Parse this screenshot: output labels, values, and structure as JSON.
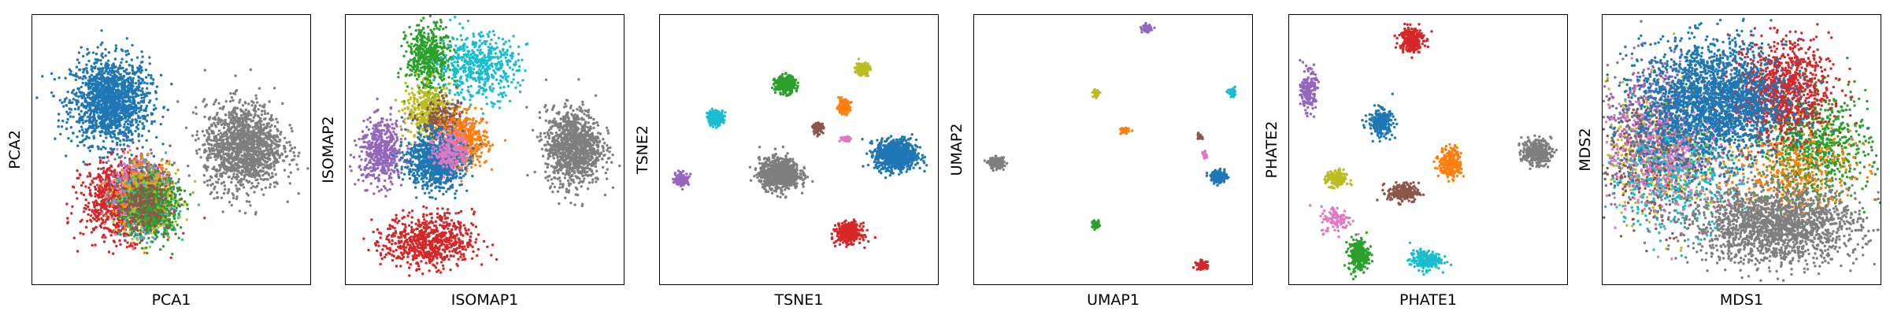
{
  "chart_data": [
    {
      "type": "scatter",
      "title": "",
      "xlabel": "PCA1",
      "ylabel": "PCA2",
      "xlim": [
        0,
        100
      ],
      "ylim": [
        0,
        100
      ],
      "grid": false,
      "ticks": false,
      "series": [
        {
          "color": "#1f77b4",
          "clusters": [
            {
              "cx": 28,
              "cy": 68,
              "sx": 7,
              "sy": 8,
              "n": 1500
            }
          ]
        },
        {
          "color": "#7f7f7f",
          "clusters": [
            {
              "cx": 76,
              "cy": 51,
              "sx": 7,
              "sy": 8,
              "n": 1400
            }
          ]
        },
        {
          "color": "#d62728",
          "clusters": [
            {
              "cx": 32,
              "cy": 31,
              "sx": 7,
              "sy": 7,
              "n": 900
            }
          ]
        },
        {
          "color": "#9467bd",
          "clusters": [
            {
              "cx": 39,
              "cy": 37,
              "sx": 5,
              "sy": 6,
              "n": 300
            }
          ]
        },
        {
          "color": "#e377c2",
          "clusters": [
            {
              "cx": 38,
              "cy": 33,
              "sx": 5,
              "sy": 6,
              "n": 300
            }
          ]
        },
        {
          "color": "#ff7f0e",
          "clusters": [
            {
              "cx": 40,
              "cy": 32,
              "sx": 5,
              "sy": 6,
              "n": 350
            }
          ]
        },
        {
          "color": "#17becf",
          "clusters": [
            {
              "cx": 42,
              "cy": 29,
              "sx": 5,
              "sy": 6,
              "n": 350
            }
          ]
        },
        {
          "color": "#bcbd22",
          "clusters": [
            {
              "cx": 42,
              "cy": 31,
              "sx": 5,
              "sy": 6,
              "n": 400
            }
          ]
        },
        {
          "color": "#2ca02c",
          "clusters": [
            {
              "cx": 43,
              "cy": 28,
              "sx": 5,
              "sy": 6,
              "n": 400
            }
          ]
        },
        {
          "color": "#8c564b",
          "clusters": [
            {
              "cx": 40,
              "cy": 30,
              "sx": 5,
              "sy": 5,
              "n": 250
            }
          ]
        }
      ]
    },
    {
      "type": "scatter",
      "title": "",
      "xlabel": "ISOMAP1",
      "ylabel": "ISOMAP2",
      "xlim": [
        0,
        100
      ],
      "ylim": [
        0,
        100
      ],
      "grid": false,
      "ticks": false,
      "series": [
        {
          "color": "#d62728",
          "clusters": [
            {
              "cx": 30,
              "cy": 16,
              "sx": 8,
              "sy": 5,
              "n": 700
            }
          ]
        },
        {
          "color": "#7f7f7f",
          "clusters": [
            {
              "cx": 82,
              "cy": 51,
              "sx": 5,
              "sy": 7,
              "n": 1100
            }
          ]
        },
        {
          "color": "#9467bd",
          "clusters": [
            {
              "cx": 13,
              "cy": 49,
              "sx": 4,
              "sy": 6,
              "n": 500
            }
          ]
        },
        {
          "color": "#2ca02c",
          "clusters": [
            {
              "cx": 30,
              "cy": 84,
              "sx": 4,
              "sy": 6,
              "n": 500
            }
          ]
        },
        {
          "color": "#17becf",
          "clusters": [
            {
              "cx": 48,
              "cy": 81,
              "sx": 7,
              "sy": 6,
              "n": 500
            }
          ]
        },
        {
          "color": "#bcbd22",
          "clusters": [
            {
              "cx": 30,
              "cy": 64,
              "sx": 4,
              "sy": 5,
              "n": 400
            }
          ]
        },
        {
          "color": "#8c564b",
          "clusters": [
            {
              "cx": 35,
              "cy": 60,
              "sx": 4,
              "sy": 4,
              "n": 250
            }
          ]
        },
        {
          "color": "#ff7f0e",
          "clusters": [
            {
              "cx": 43,
              "cy": 53,
              "sx": 4,
              "sy": 5,
              "n": 450
            }
          ]
        },
        {
          "color": "#1f77b4",
          "clusters": [
            {
              "cx": 32,
              "cy": 46,
              "sx": 5,
              "sy": 5,
              "n": 900
            }
          ]
        },
        {
          "color": "#e377c2",
          "clusters": [
            {
              "cx": 38,
              "cy": 50,
              "sx": 3,
              "sy": 4,
              "n": 200
            }
          ]
        }
      ]
    },
    {
      "type": "scatter",
      "title": "",
      "xlabel": "TSNE1",
      "ylabel": "TSNE2",
      "xlim": [
        0,
        100
      ],
      "ylim": [
        0,
        100
      ],
      "grid": false,
      "ticks": false,
      "series": [
        {
          "color": "#1f77b4",
          "clusters": [
            {
              "cx": 85,
              "cy": 48,
              "sx": 3.6,
              "sy": 2.8,
              "n": 900
            }
          ]
        },
        {
          "color": "#7f7f7f",
          "clusters": [
            {
              "cx": 43,
              "cy": 41,
              "sx": 3.6,
              "sy": 2.8,
              "n": 900
            }
          ]
        },
        {
          "color": "#d62728",
          "clusters": [
            {
              "cx": 68,
              "cy": 19,
              "sx": 2.2,
              "sy": 1.8,
              "n": 400
            }
          ]
        },
        {
          "color": "#2ca02c",
          "clusters": [
            {
              "cx": 45,
              "cy": 74,
              "sx": 1.8,
              "sy": 1.6,
              "n": 300
            }
          ]
        },
        {
          "color": "#17becf",
          "clusters": [
            {
              "cx": 20,
              "cy": 62,
              "sx": 1.4,
              "sy": 1.3,
              "n": 220
            }
          ]
        },
        {
          "color": "#bcbd22",
          "clusters": [
            {
              "cx": 73,
              "cy": 80,
              "sx": 1.2,
              "sy": 1.2,
              "n": 150
            }
          ]
        },
        {
          "color": "#ff7f0e",
          "clusters": [
            {
              "cx": 66,
              "cy": 66,
              "sx": 1.2,
              "sy": 1.2,
              "n": 150
            }
          ]
        },
        {
          "color": "#8c564b",
          "clusters": [
            {
              "cx": 57,
              "cy": 58,
              "sx": 0.9,
              "sy": 0.9,
              "n": 100
            }
          ]
        },
        {
          "color": "#e377c2",
          "clusters": [
            {
              "cx": 67,
              "cy": 54,
              "sx": 1.0,
              "sy": 0.5,
              "n": 60
            }
          ]
        },
        {
          "color": "#9467bd",
          "clusters": [
            {
              "cx": 8,
              "cy": 39,
              "sx": 1.2,
              "sy": 1.1,
              "n": 150
            }
          ]
        }
      ]
    },
    {
      "type": "scatter",
      "title": "",
      "xlabel": "UMAP1",
      "ylabel": "UMAP2",
      "xlim": [
        0,
        100
      ],
      "ylim": [
        0,
        100
      ],
      "grid": false,
      "ticks": false,
      "series": [
        {
          "color": "#7f7f7f",
          "clusters": [
            {
              "cx": 8,
              "cy": 45,
              "sx": 1.4,
              "sy": 1.0,
              "n": 200
            }
          ]
        },
        {
          "color": "#9467bd",
          "clusters": [
            {
              "cx": 62,
              "cy": 95,
              "sx": 0.8,
              "sy": 0.7,
              "n": 60
            }
          ]
        },
        {
          "color": "#17becf",
          "clusters": [
            {
              "cx": 93,
              "cy": 71,
              "sx": 0.7,
              "sy": 0.7,
              "n": 60
            }
          ]
        },
        {
          "color": "#bcbd22",
          "clusters": [
            {
              "cx": 44,
              "cy": 71,
              "sx": 0.6,
              "sy": 0.8,
              "n": 50
            }
          ]
        },
        {
          "color": "#ff7f0e",
          "clusters": [
            {
              "cx": 54,
              "cy": 57,
              "sx": 0.8,
              "sy": 0.6,
              "n": 50
            }
          ]
        },
        {
          "color": "#8c564b",
          "clusters": [
            {
              "cx": 81,
              "cy": 55,
              "sx": 0.5,
              "sy": 0.5,
              "n": 30
            }
          ]
        },
        {
          "color": "#e377c2",
          "clusters": [
            {
              "cx": 83,
              "cy": 48,
              "sx": 0.4,
              "sy": 0.6,
              "n": 25
            }
          ]
        },
        {
          "color": "#1f77b4",
          "clusters": [
            {
              "cx": 88,
              "cy": 40,
              "sx": 1.4,
              "sy": 1.1,
              "n": 200
            }
          ]
        },
        {
          "color": "#2ca02c",
          "clusters": [
            {
              "cx": 44,
              "cy": 22,
              "sx": 0.8,
              "sy": 0.7,
              "n": 60
            }
          ]
        },
        {
          "color": "#d62728",
          "clusters": [
            {
              "cx": 82,
              "cy": 7,
              "sx": 1.0,
              "sy": 0.8,
              "n": 80
            }
          ]
        }
      ]
    },
    {
      "type": "scatter",
      "title": "",
      "xlabel": "PHATE1",
      "ylabel": "PHATE2",
      "xlim": [
        0,
        100
      ],
      "ylim": [
        0,
        100
      ],
      "grid": false,
      "ticks": false,
      "series": [
        {
          "color": "#d62728",
          "clusters": [
            {
              "cx": 44,
              "cy": 91,
              "sx": 2.2,
              "sy": 2.4,
              "n": 250
            }
          ]
        },
        {
          "color": "#9467bd",
          "clusters": [
            {
              "cx": 7,
              "cy": 72,
              "sx": 1.3,
              "sy": 3.5,
              "n": 200
            }
          ]
        },
        {
          "color": "#1f77b4",
          "clusters": [
            {
              "cx": 33,
              "cy": 60,
              "sx": 2.2,
              "sy": 2.5,
              "n": 250
            }
          ]
        },
        {
          "color": "#7f7f7f",
          "clusters": [
            {
              "cx": 89,
              "cy": 49,
              "sx": 2.6,
              "sy": 2.4,
              "n": 300
            }
          ]
        },
        {
          "color": "#ff7f0e",
          "clusters": [
            {
              "cx": 58,
              "cy": 45,
              "sx": 2.0,
              "sy": 2.8,
              "n": 250
            }
          ]
        },
        {
          "color": "#bcbd22",
          "clusters": [
            {
              "cx": 17,
              "cy": 39,
              "sx": 1.8,
              "sy": 1.6,
              "n": 180
            }
          ]
        },
        {
          "color": "#8c564b",
          "clusters": [
            {
              "cx": 41,
              "cy": 34,
              "sx": 2.8,
              "sy": 1.8,
              "n": 200
            }
          ]
        },
        {
          "color": "#e377c2",
          "clusters": [
            {
              "cx": 17,
              "cy": 24,
              "sx": 2.8,
              "sy": 2.5,
              "n": 100
            }
          ]
        },
        {
          "color": "#2ca02c",
          "clusters": [
            {
              "cx": 25,
              "cy": 11,
              "sx": 1.8,
              "sy": 3.0,
              "n": 250
            }
          ]
        },
        {
          "color": "#17becf",
          "clusters": [
            {
              "cx": 49,
              "cy": 9,
              "sx": 2.8,
              "sy": 1.8,
              "n": 200
            }
          ]
        }
      ]
    },
    {
      "type": "scatter",
      "title": "",
      "xlabel": "MDS1",
      "ylabel": "MDS2",
      "xlim": [
        0,
        100
      ],
      "ylim": [
        0,
        100
      ],
      "grid": false,
      "ticks": false,
      "series": [
        {
          "color": "#bcbd22",
          "clusters": [
            {
              "cx": 22,
              "cy": 50,
              "sx": 10,
              "sy": 12,
              "n": 500
            }
          ]
        },
        {
          "color": "#9467bd",
          "clusters": [
            {
              "cx": 18,
              "cy": 58,
              "sx": 10,
              "sy": 12,
              "n": 500
            }
          ]
        },
        {
          "color": "#8c564b",
          "clusters": [
            {
              "cx": 20,
              "cy": 46,
              "sx": 10,
              "sy": 12,
              "n": 450
            }
          ]
        },
        {
          "color": "#17becf",
          "clusters": [
            {
              "cx": 26,
              "cy": 40,
              "sx": 12,
              "sy": 10,
              "n": 450
            }
          ]
        },
        {
          "color": "#e377c2",
          "clusters": [
            {
              "cx": 24,
              "cy": 50,
              "sx": 12,
              "sy": 12,
              "n": 400
            }
          ]
        },
        {
          "color": "#2ca02c",
          "clusters": [
            {
              "cx": 76,
              "cy": 51,
              "sx": 10,
              "sy": 10,
              "n": 800
            }
          ]
        },
        {
          "color": "#ff7f0e",
          "clusters": [
            {
              "cx": 68,
              "cy": 42,
              "sx": 11,
              "sy": 9,
              "n": 400
            }
          ]
        },
        {
          "color": "#d62728",
          "clusters": [
            {
              "cx": 64,
              "cy": 72,
              "sx": 9,
              "sy": 9,
              "n": 1000
            }
          ]
        },
        {
          "color": "#1f77b4",
          "clusters": [
            {
              "cx": 40,
              "cy": 68,
              "sx": 13,
              "sy": 11,
              "n": 2200
            }
          ]
        },
        {
          "color": "#7f7f7f",
          "clusters": [
            {
              "cx": 62,
              "cy": 22,
              "sx": 15,
              "sy": 7,
              "n": 1800
            }
          ]
        }
      ]
    }
  ]
}
